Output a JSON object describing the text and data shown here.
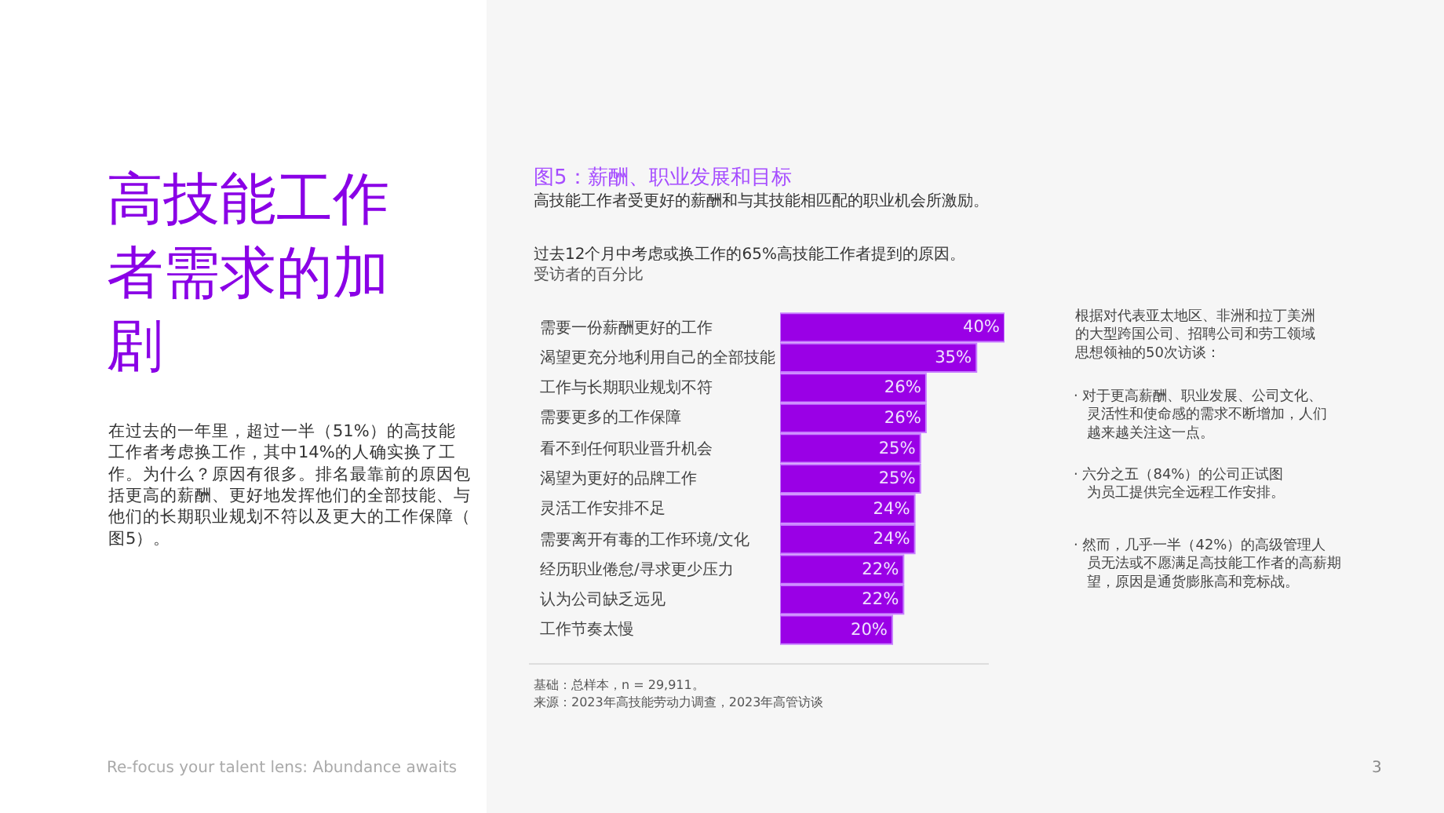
{
  "chart_data": {
    "type": "bar",
    "orientation": "horizontal",
    "title": "图5：薪酬、职业发展和目标",
    "subtitle": "高技能工作者受更好的薪酬和与其技能相匹配的职业机会所激励。",
    "categories": [
      "需要一份薪酬更好的工作",
      "渴望更充分地利用自己的全部技能",
      "工作与长期职业规划不符",
      "需要更多的工作保障",
      "看不到任何职业晋升机会",
      "渴望为更好的品牌工作",
      "灵活工作安排不足",
      "需要离开有毒的工作环境/文化",
      "经历职业倦怠/寻求更少压力",
      "认为公司缺乏远见",
      "工作节奏太慢"
    ],
    "values": [
      40,
      35,
      26,
      26,
      25,
      25,
      24,
      24,
      22,
      22,
      20
    ],
    "value_labels": [
      "40%",
      "35%",
      "26%",
      "26%",
      "25%",
      "25%",
      "24%",
      "24%",
      "22%",
      "22%",
      "20%"
    ],
    "color": "#9a00e6",
    "annotations": [
      "高技能工作者需求的加剧",
      "在过去的一年里，超过一半（51%）的高技能工作者考虑换工作，其中14%的人确实换了工作。为什么？原因有很多。排名最靠前的原因包括更高的薪酬、更好地发挥他们的全部技能、与他们的长期职业规划不符以及更大的工作保障（图5）。",
      "过去12个月中考虑或换工作的65%高技能工作者提到的原因。",
      "受访者的百分比",
      "根据对代表亚太地区、非洲和拉丁美洲的大型跨国公司、招聘公司和劳工领域思想领袖的50次访谈：",
      "· 对于更高薪酬、职业发展、公司文化、灵活性和使命感的需求不断增加，人们越来越关注这一点。",
      "· 六分之五（84%）的公司正试图为员工提供完全远程工作安排。",
      "· 然而，几乎一半（42%）的高级管理人员无法或不愿满足高技能工作者的高薪期望，原因是通货膨胀高和竞标战。",
      "基础：总样本，n = 29,911。",
      "来源：2023年高技能劳动力调查，2023年高管访谈",
      "Re-focus your talent lens: Abundance awaits",
      "3"
    ]
  }
}
